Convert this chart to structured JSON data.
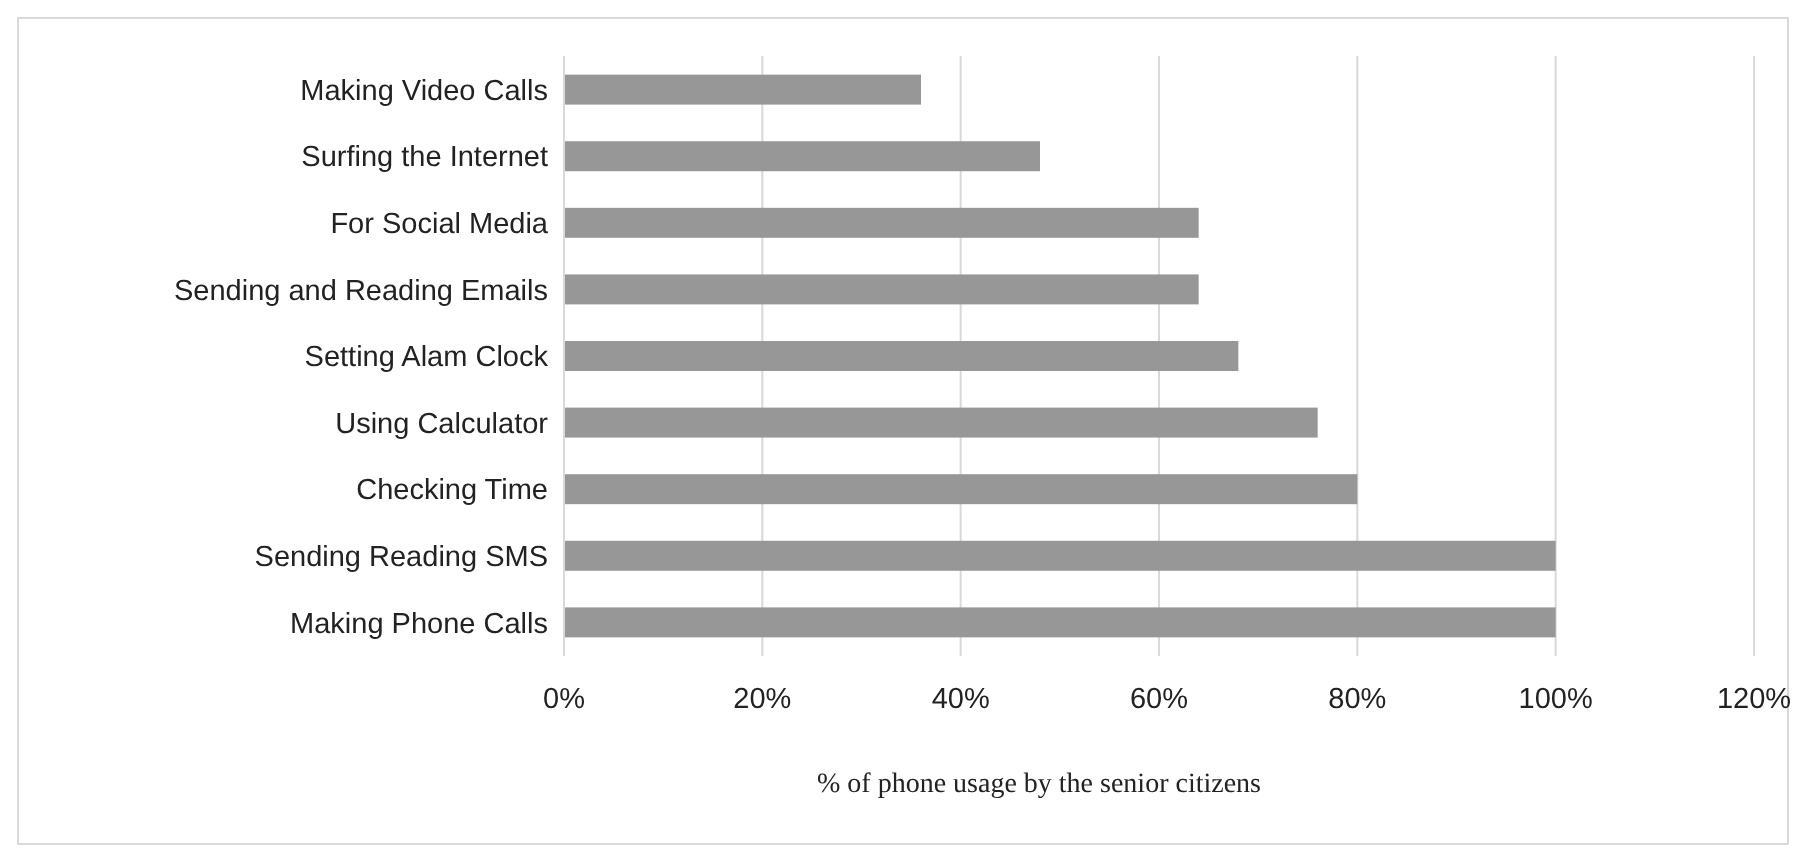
{
  "chart_data": {
    "type": "bar",
    "orientation": "horizontal",
    "categories": [
      "Making Video Calls",
      "Surfing the Internet",
      "For Social Media",
      "Sending and Reading Emails",
      "Setting Alam Clock",
      "Using Calculator",
      "Checking Time",
      "Sending Reading SMS",
      "Making Phone Calls"
    ],
    "values": [
      36,
      48,
      64,
      64,
      68,
      76,
      80,
      100,
      100
    ],
    "color": "#979797",
    "xlim": [
      0,
      120
    ],
    "xticks": [
      {
        "value": 0,
        "label": "0%"
      },
      {
        "value": 20,
        "label": "20%"
      },
      {
        "value": 40,
        "label": "40%"
      },
      {
        "value": 60,
        "label": "60%"
      },
      {
        "value": 80,
        "label": "80%"
      },
      {
        "value": 100,
        "label": "100%"
      },
      {
        "value": 120,
        "label": "120%"
      }
    ],
    "grid": "x",
    "xlabel": "% of phone usage by the senior citizens"
  }
}
